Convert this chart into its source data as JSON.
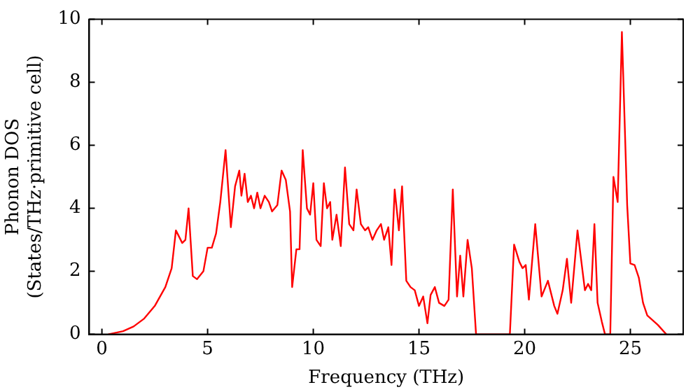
{
  "chart_data": {
    "type": "line",
    "xlabel": "Frequency (THz)",
    "ylabel": "Phonon DOS\n(States/THz·primitive cell)",
    "xlim": [
      -0.6,
      27.5
    ],
    "ylim": [
      0,
      10
    ],
    "xticks": [
      0,
      5,
      10,
      15,
      20,
      25
    ],
    "yticks": [
      0,
      2,
      4,
      6,
      8,
      10
    ],
    "grid": false,
    "legend": false,
    "marker": "none",
    "line_style": "solid",
    "series": [
      {
        "color": "#ff0000",
        "x": [
          0.3,
          1,
          1.5,
          2,
          2.5,
          3,
          3.3,
          3.5,
          3.8,
          3.95,
          4.1,
          4.3,
          4.5,
          4.8,
          5.0,
          5.2,
          5.4,
          5.6,
          5.85,
          6.1,
          6.3,
          6.5,
          6.6,
          6.75,
          6.9,
          7.05,
          7.2,
          7.35,
          7.5,
          7.7,
          7.9,
          8.05,
          8.3,
          8.5,
          8.7,
          8.9,
          9.0,
          9.2,
          9.35,
          9.5,
          9.7,
          9.85,
          10.0,
          10.15,
          10.35,
          10.5,
          10.65,
          10.8,
          10.9,
          11.1,
          11.3,
          11.5,
          11.7,
          11.9,
          12.05,
          12.25,
          12.45,
          12.6,
          12.8,
          13.0,
          13.2,
          13.35,
          13.55,
          13.7,
          13.85,
          14.05,
          14.2,
          14.4,
          14.6,
          14.8,
          15.0,
          15.2,
          15.4,
          15.55,
          15.75,
          15.95,
          16.2,
          16.4,
          16.6,
          16.8,
          16.95,
          17.1,
          17.3,
          17.5,
          17.7,
          19.3,
          19.5,
          19.75,
          19.9,
          20.05,
          20.2,
          20.5,
          20.8,
          21.1,
          21.4,
          21.55,
          21.8,
          22.0,
          22.2,
          22.5,
          22.85,
          23.0,
          23.15,
          23.3,
          23.45,
          23.65,
          23.8,
          24.05,
          24.2,
          24.4,
          24.6,
          24.85,
          25.0,
          25.2,
          25.4,
          25.6,
          25.8,
          26.3,
          26.7
        ],
        "values": [
          0,
          0.1,
          0.25,
          0.5,
          0.9,
          1.5,
          2.1,
          3.3,
          2.9,
          3.0,
          4.0,
          1.85,
          1.75,
          2.0,
          2.75,
          2.75,
          3.2,
          4.2,
          5.85,
          3.4,
          4.7,
          5.2,
          4.4,
          5.1,
          4.2,
          4.4,
          4.0,
          4.5,
          4.0,
          4.4,
          4.2,
          3.9,
          4.1,
          5.2,
          4.9,
          3.9,
          1.5,
          2.7,
          2.7,
          5.85,
          4.0,
          3.8,
          4.8,
          3.0,
          2.8,
          4.8,
          4.0,
          4.2,
          3.0,
          3.8,
          2.8,
          5.3,
          3.5,
          3.3,
          4.6,
          3.5,
          3.3,
          3.4,
          3.0,
          3.3,
          3.5,
          3.0,
          3.4,
          2.2,
          4.6,
          3.3,
          4.7,
          1.7,
          1.5,
          1.4,
          0.9,
          1.2,
          0.35,
          1.25,
          1.5,
          1.0,
          0.9,
          1.1,
          4.6,
          1.2,
          2.5,
          1.2,
          3.0,
          2.1,
          0,
          0,
          2.85,
          2.3,
          2.1,
          2.2,
          1.1,
          3.5,
          1.2,
          1.7,
          0.9,
          0.65,
          1.4,
          2.4,
          1.0,
          3.3,
          1.4,
          1.6,
          1.4,
          3.5,
          1.0,
          0.4,
          0,
          0,
          5.0,
          4.2,
          9.6,
          4.1,
          2.25,
          2.2,
          1.8,
          1.0,
          0.6,
          0.3,
          0
        ]
      }
    ]
  }
}
